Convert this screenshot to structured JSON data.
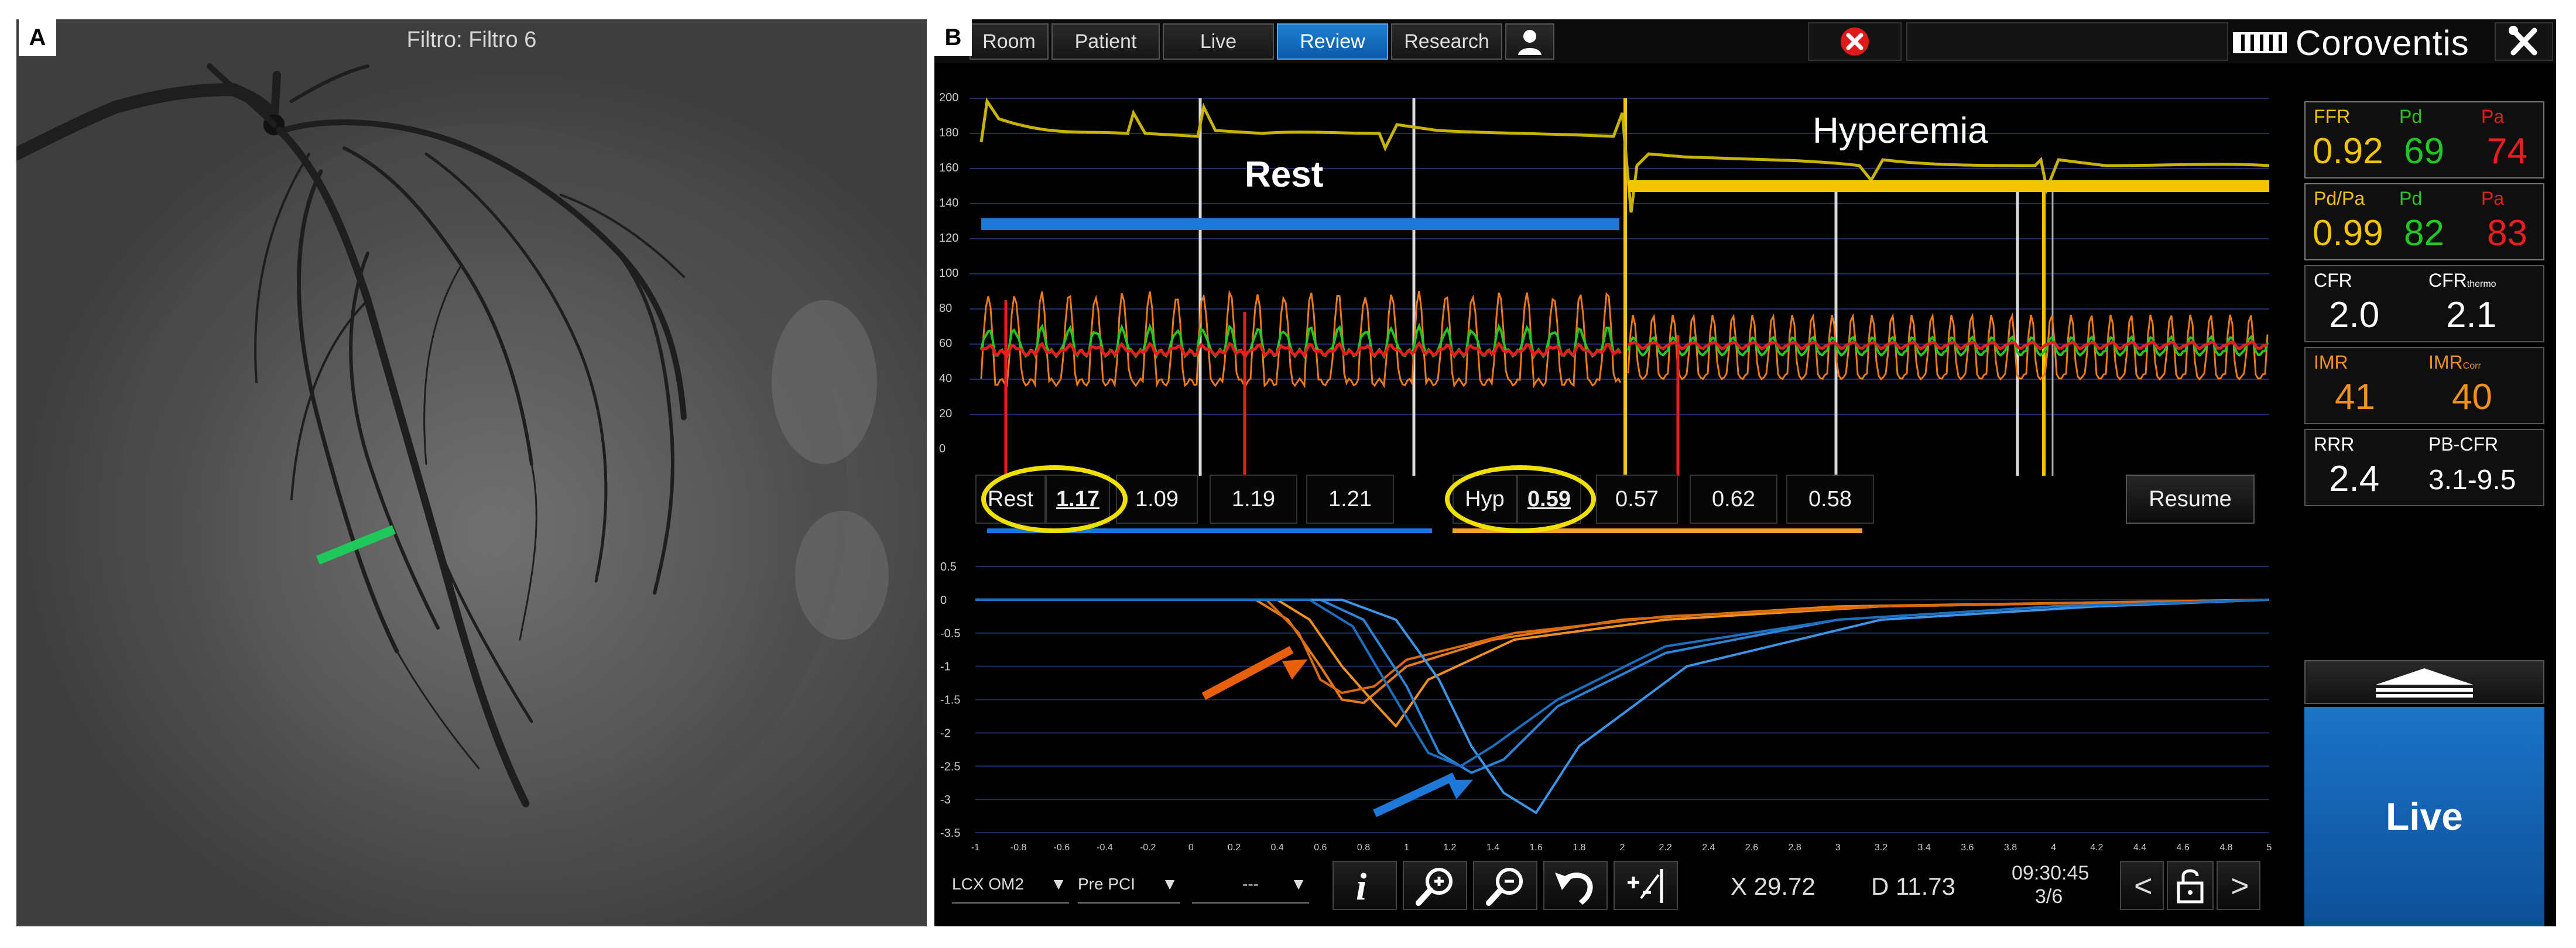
{
  "figure": {
    "panel_a_letter": "A",
    "panel_b_letter": "B"
  },
  "angiogram": {
    "filter_label": "Filtro: Filtro 6",
    "marker_color": "#1ec85a"
  },
  "app": {
    "tabs": [
      {
        "label": "Room",
        "active": false
      },
      {
        "label": "Patient",
        "active": false
      },
      {
        "label": "Live",
        "active": false
      },
      {
        "label": "Review",
        "active": true
      },
      {
        "label": "Research",
        "active": false
      }
    ],
    "brand": "Coroventis",
    "accent_color": "#1268b8"
  },
  "pressure_chart": {
    "y_ticks": [
      "200",
      "180",
      "160",
      "140",
      "120",
      "100",
      "80",
      "60",
      "40",
      "20",
      "0"
    ],
    "rest_label": "Rest",
    "hyperemia_label": "Hyperemia",
    "rest_color": "#1e78d8",
    "hyperemia_color": "#f5c400",
    "pd_color": "#22c822",
    "pa_color": "#e81e1e"
  },
  "measurements": {
    "rest": {
      "label": "Rest",
      "selected": "1.17",
      "values": [
        "1.09",
        "1.19",
        "1.21"
      ]
    },
    "hyp": {
      "label": "Hyp",
      "selected": "0.59",
      "values": [
        "0.57",
        "0.62",
        "0.58"
      ]
    },
    "resume_label": "Resume"
  },
  "thermo_chart": {
    "type": "line",
    "y_ticks": [
      "0.5",
      "0",
      "-0.5",
      "-1",
      "-1.5",
      "-2",
      "-2.5",
      "-3",
      "-3.5"
    ],
    "x_ticks": [
      "-1",
      "-0.8",
      "-0.6",
      "-0.4",
      "-0.2",
      "0",
      "0.2",
      "0.4",
      "0.6",
      "0.8",
      "1",
      "1.2",
      "1.4",
      "1.6",
      "1.8",
      "2",
      "2.2",
      "2.4",
      "2.6",
      "2.8",
      "3",
      "3.2",
      "3.4",
      "3.6",
      "3.8",
      "4",
      "4.2",
      "4.4",
      "4.6",
      "4.8",
      "5"
    ],
    "series": [
      {
        "color": "#e87a18",
        "x": [
          -1,
          0.3,
          0.45,
          0.6,
          0.7,
          0.8,
          1.0,
          1.4,
          2.0,
          3.0,
          5.0
        ],
        "y": [
          0,
          0,
          -0.3,
          -1.0,
          -1.5,
          -1.55,
          -1.0,
          -0.6,
          -0.3,
          -0.1,
          0
        ]
      },
      {
        "color": "#f0901e",
        "x": [
          -1,
          0.4,
          0.55,
          0.7,
          0.85,
          0.95,
          1.1,
          1.5,
          2.2,
          3.2,
          5.0
        ],
        "y": [
          0,
          0,
          -0.3,
          -1.0,
          -1.55,
          -1.9,
          -1.2,
          -0.6,
          -0.3,
          -0.1,
          0
        ]
      },
      {
        "color": "#d86a10",
        "x": [
          -1,
          0.35,
          0.5,
          0.6,
          0.7,
          0.85,
          1.0,
          1.5,
          2.2,
          3.2,
          5.0
        ],
        "y": [
          0,
          0,
          -0.5,
          -1.2,
          -1.4,
          -1.3,
          -0.9,
          -0.5,
          -0.25,
          -0.1,
          0
        ]
      },
      {
        "color": "#2a84d8",
        "x": [
          -1,
          0.6,
          0.8,
          1.0,
          1.15,
          1.3,
          1.45,
          1.7,
          2.2,
          3.0,
          4.0,
          5.0
        ],
        "y": [
          0,
          0,
          -0.3,
          -1.3,
          -2.3,
          -2.6,
          -2.4,
          -1.6,
          -0.8,
          -0.3,
          -0.1,
          0
        ]
      },
      {
        "color": "#3b94e8",
        "x": [
          -1,
          0.7,
          0.95,
          1.15,
          1.3,
          1.45,
          1.6,
          1.8,
          2.3,
          3.2,
          4.2,
          5.0
        ],
        "y": [
          0,
          0,
          -0.3,
          -1.2,
          -2.2,
          -2.9,
          -3.2,
          -2.2,
          -1.0,
          -0.3,
          -0.1,
          0
        ]
      },
      {
        "color": "#1c70c0",
        "x": [
          -1,
          0.55,
          0.75,
          0.95,
          1.1,
          1.25,
          1.4,
          1.7,
          2.2,
          3.0,
          4.0,
          5.0
        ],
        "y": [
          0,
          0,
          -0.4,
          -1.5,
          -2.3,
          -2.5,
          -2.2,
          -1.5,
          -0.7,
          -0.3,
          -0.1,
          0
        ]
      }
    ]
  },
  "side_panel": {
    "ffr": {
      "label": "FFR",
      "pd_label": "Pd",
      "pa_label": "Pa",
      "value": "0.92",
      "pd": "69",
      "pa": "74"
    },
    "pdpa": {
      "label": "Pd/Pa",
      "pd_label": "Pd",
      "pa_label": "Pa",
      "value": "0.99",
      "pd": "82",
      "pa": "83"
    },
    "cfr": {
      "label": "CFR",
      "label2": "CFR",
      "label2_sub": "thermo",
      "value": "2.0",
      "value2": "2.1"
    },
    "imr": {
      "label": "IMR",
      "label2": "IMR",
      "label2_sub": "Corr",
      "value": "41",
      "value2": "40"
    },
    "rrr": {
      "label": "RRR",
      "label2": "PB-CFR",
      "value": "2.4",
      "value2": "3.1-9.5"
    },
    "live_label": "Live"
  },
  "bottom_bar": {
    "vessel": "LCX OM2",
    "stage": "Pre PCI",
    "third": "---",
    "x_readout": "X 29.72",
    "d_readout": "D 11.73",
    "time": "09:30:45",
    "page": "3/6"
  }
}
